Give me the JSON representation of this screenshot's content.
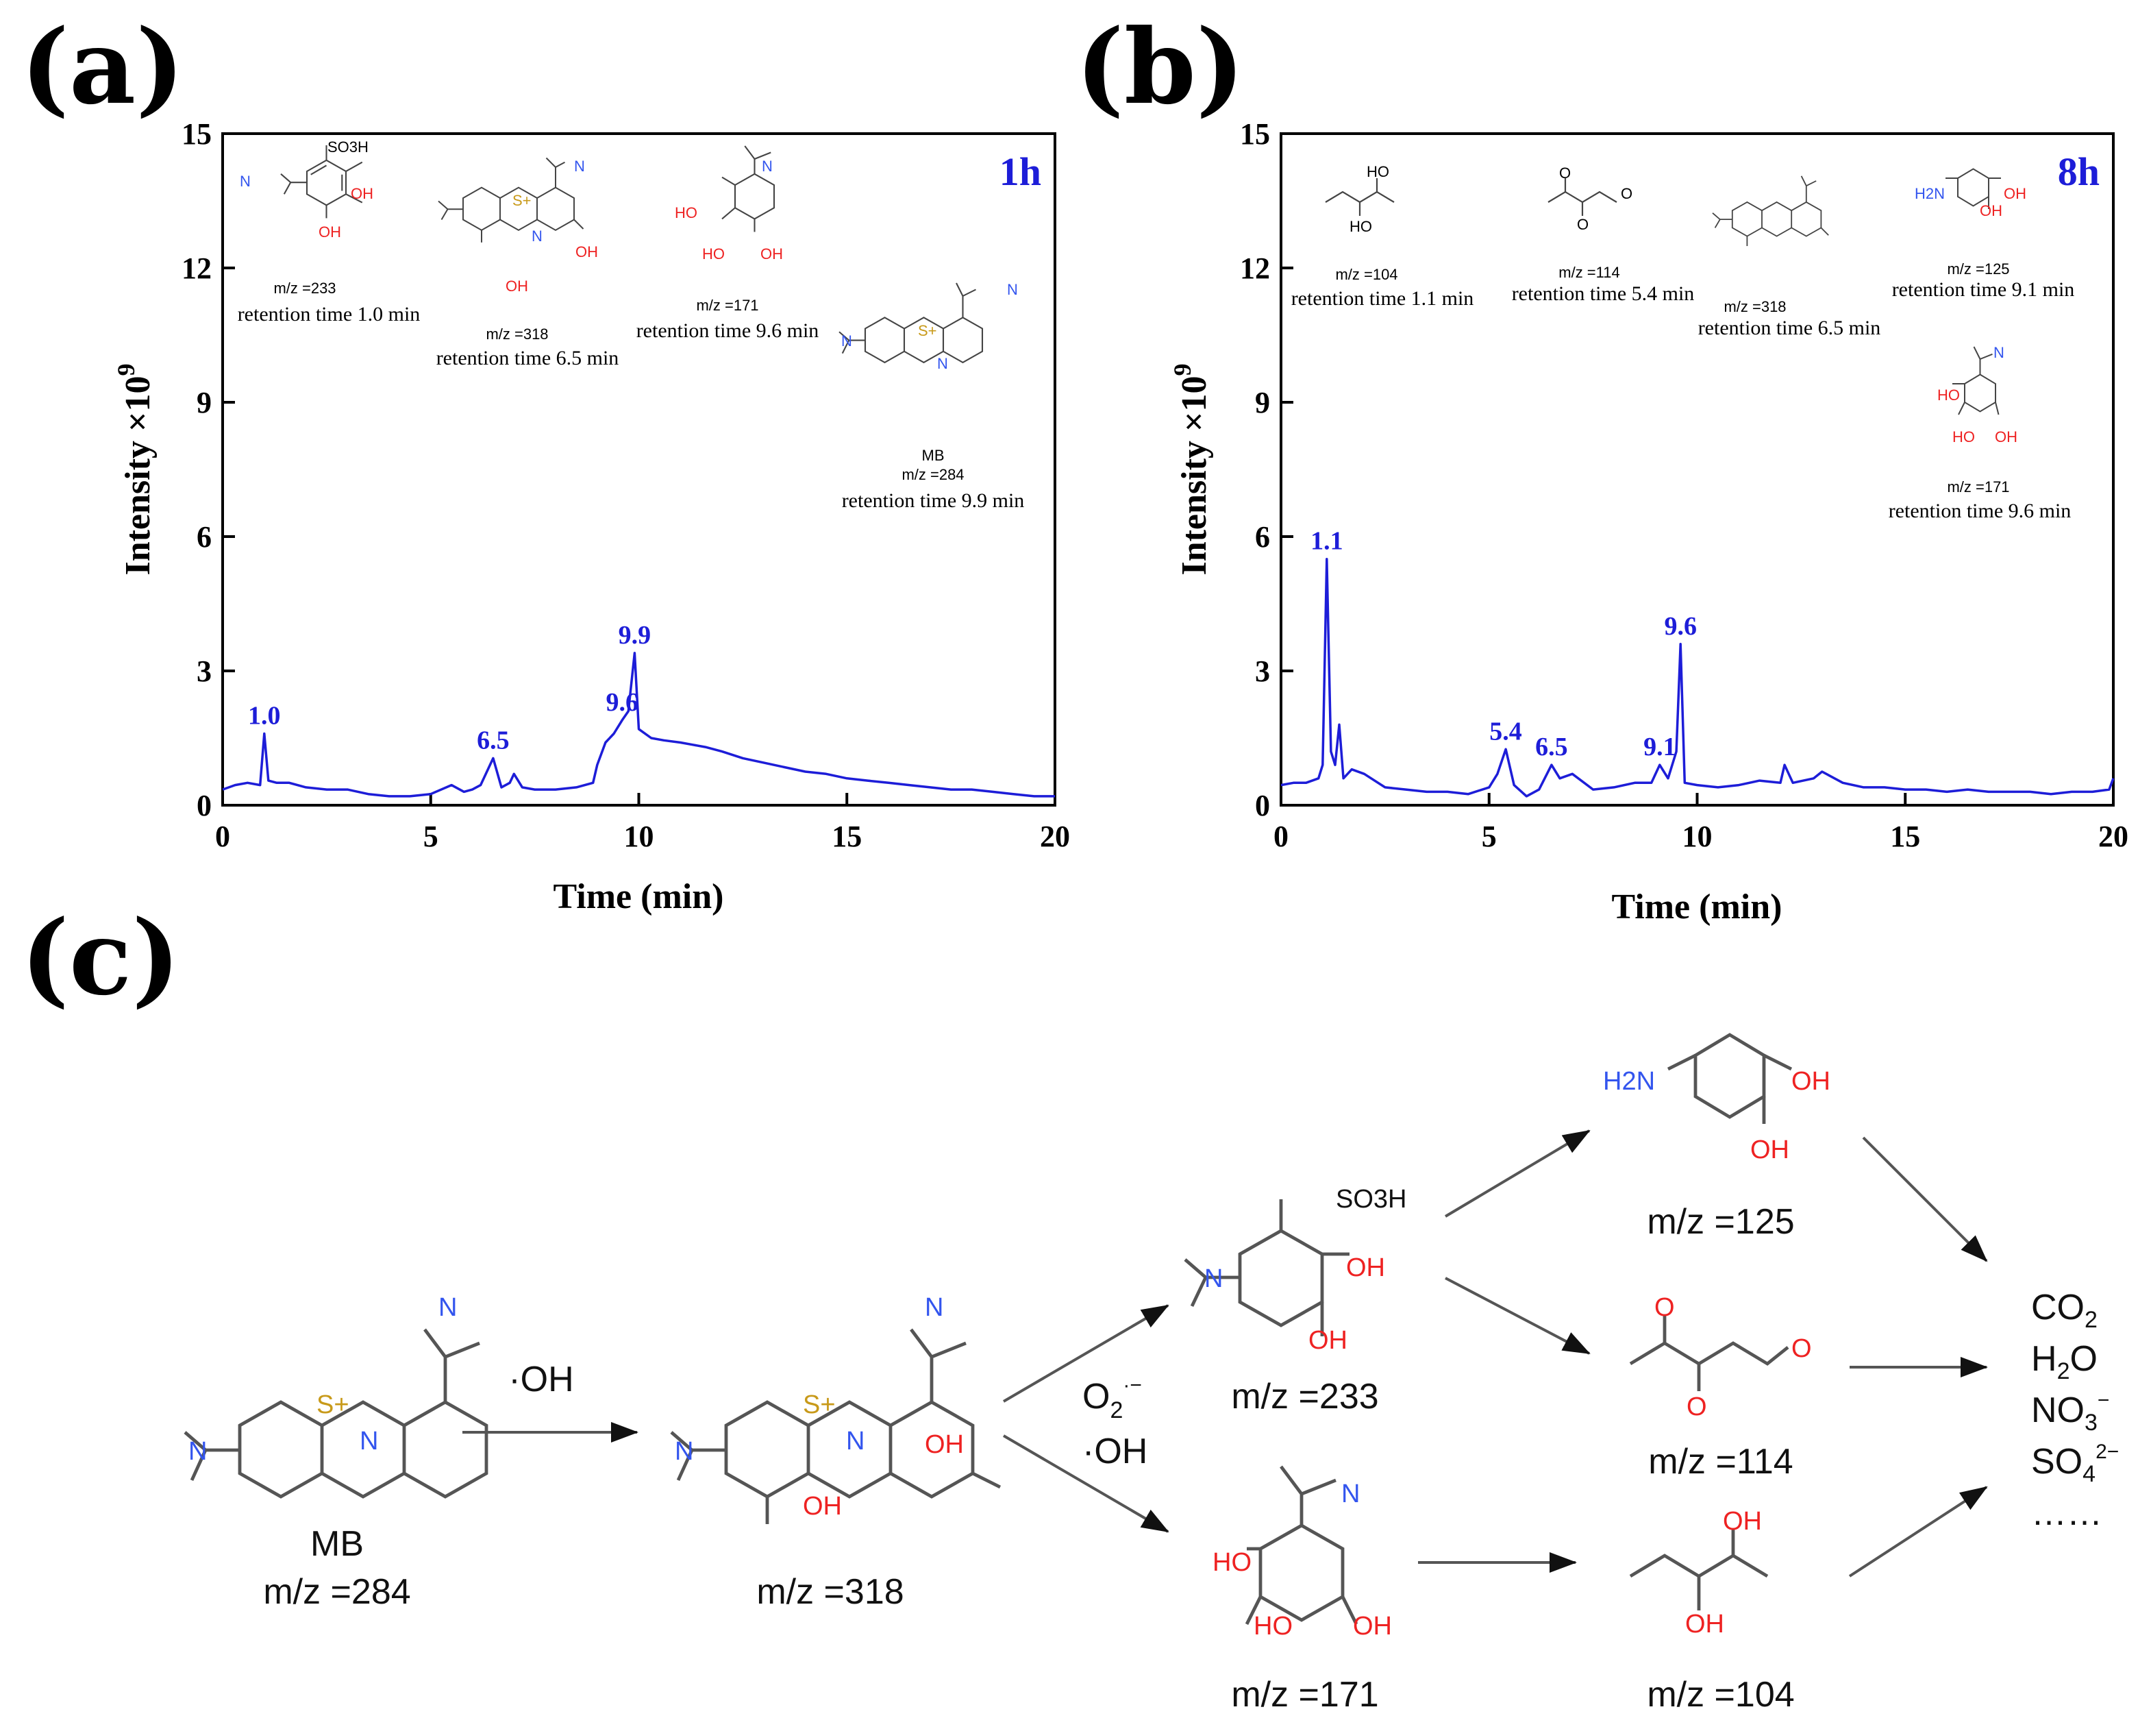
{
  "panels": {
    "a": "(a)",
    "b": "(b)",
    "c": "(c)"
  },
  "chart_data": [
    {
      "type": "line",
      "panel": "a",
      "time_label": "1h",
      "xlabel": "Time (min)",
      "ylabel_main": "Intensity ×10",
      "ylabel_exp": "9",
      "xlim": [
        0,
        20
      ],
      "ylim": [
        0,
        15
      ],
      "xticks": [
        "0",
        "5",
        "10",
        "15",
        "20"
      ],
      "yticks": [
        "0",
        "3",
        "6",
        "9",
        "12",
        "15"
      ],
      "series": [
        {
          "name": "1h",
          "x": [
            0,
            0.3,
            0.6,
            0.9,
            1.0,
            1.1,
            1.3,
            1.6,
            2.0,
            2.5,
            3.0,
            3.5,
            4.0,
            4.5,
            5.0,
            5.5,
            5.8,
            6.0,
            6.2,
            6.5,
            6.7,
            6.9,
            7.0,
            7.2,
            7.5,
            8.0,
            8.5,
            8.9,
            9.0,
            9.2,
            9.4,
            9.6,
            9.75,
            9.9,
            10.0,
            10.3,
            10.6,
            11.0,
            11.3,
            11.6,
            12.0,
            12.5,
            13.0,
            13.5,
            14.0,
            14.5,
            15.0,
            15.5,
            16.0,
            16.5,
            17.0,
            17.5,
            18.0,
            18.5,
            19.0,
            19.5,
            20.0
          ],
          "y": [
            0.35,
            0.45,
            0.5,
            0.45,
            1.6,
            0.55,
            0.5,
            0.5,
            0.4,
            0.35,
            0.35,
            0.25,
            0.2,
            0.2,
            0.25,
            0.45,
            0.3,
            0.35,
            0.45,
            1.05,
            0.4,
            0.5,
            0.7,
            0.4,
            0.35,
            0.35,
            0.4,
            0.5,
            0.9,
            1.4,
            1.6,
            1.9,
            2.1,
            3.4,
            1.7,
            1.5,
            1.45,
            1.4,
            1.35,
            1.3,
            1.2,
            1.05,
            0.95,
            0.85,
            0.75,
            0.7,
            0.6,
            0.55,
            0.5,
            0.45,
            0.4,
            0.35,
            0.35,
            0.3,
            0.25,
            0.2,
            0.2
          ]
        }
      ],
      "peak_labels": [
        {
          "text": "1.0",
          "x": 1.0,
          "y": 1.6
        },
        {
          "text": "6.5",
          "x": 6.5,
          "y": 1.05
        },
        {
          "text": "9.6",
          "x": 9.6,
          "y": 1.9
        },
        {
          "text": "9.9",
          "x": 9.9,
          "y": 3.4
        }
      ],
      "annotations": [
        {
          "mz": "m/z =233",
          "rt": "retention time 1.0 min"
        },
        {
          "mz": "m/z =318",
          "rt": "retention time 6.5 min"
        },
        {
          "mz": "m/z =171",
          "rt": "retention time 9.6 min"
        },
        {
          "name": "MB",
          "mz": "m/z =284",
          "rt": "retention time 9.9 min"
        }
      ]
    },
    {
      "type": "line",
      "panel": "b",
      "time_label": "8h",
      "xlabel": "Time (min)",
      "ylabel_main": "Intensity ×10",
      "ylabel_exp": "9",
      "xlim": [
        0,
        20
      ],
      "ylim": [
        0,
        15
      ],
      "xticks": [
        "0",
        "5",
        "10",
        "15",
        "20"
      ],
      "yticks": [
        "0",
        "3",
        "6",
        "9",
        "12",
        "15"
      ],
      "series": [
        {
          "name": "8h",
          "x": [
            0,
            0.3,
            0.6,
            0.9,
            1.0,
            1.1,
            1.2,
            1.3,
            1.4,
            1.5,
            1.7,
            2.0,
            2.5,
            3.0,
            3.5,
            4.0,
            4.5,
            5.0,
            5.2,
            5.4,
            5.6,
            5.9,
            6.2,
            6.5,
            6.7,
            7.0,
            7.5,
            8.0,
            8.5,
            8.9,
            9.1,
            9.3,
            9.5,
            9.6,
            9.7,
            10.0,
            10.5,
            11.0,
            11.5,
            12.0,
            12.1,
            12.3,
            12.8,
            13.0,
            13.5,
            14.0,
            14.5,
            15.0,
            15.5,
            16.0,
            16.5,
            17.0,
            17.5,
            18.0,
            18.5,
            19.0,
            19.5,
            19.9,
            20.0
          ],
          "y": [
            0.45,
            0.5,
            0.5,
            0.6,
            0.9,
            5.5,
            1.2,
            0.9,
            1.8,
            0.6,
            0.8,
            0.7,
            0.4,
            0.35,
            0.3,
            0.3,
            0.25,
            0.4,
            0.7,
            1.25,
            0.45,
            0.2,
            0.35,
            0.9,
            0.6,
            0.7,
            0.35,
            0.4,
            0.5,
            0.5,
            0.9,
            0.6,
            1.2,
            3.6,
            0.5,
            0.45,
            0.4,
            0.45,
            0.55,
            0.5,
            0.9,
            0.5,
            0.6,
            0.75,
            0.5,
            0.4,
            0.4,
            0.35,
            0.35,
            0.3,
            0.35,
            0.3,
            0.3,
            0.3,
            0.25,
            0.3,
            0.3,
            0.35,
            0.6
          ]
        }
      ],
      "peak_labels": [
        {
          "text": "1.1",
          "x": 1.1,
          "y": 5.5
        },
        {
          "text": "5.4",
          "x": 5.4,
          "y": 1.25
        },
        {
          "text": "6.5",
          "x": 6.5,
          "y": 0.9
        },
        {
          "text": "9.1",
          "x": 9.1,
          "y": 0.9
        },
        {
          "text": "9.6",
          "x": 9.6,
          "y": 3.6
        }
      ],
      "annotations": [
        {
          "mz": "m/z =104",
          "rt": "retention time 1.1 min"
        },
        {
          "mz": "m/z =114",
          "rt": "retention time 5.4 min"
        },
        {
          "mz": "m/z =318",
          "rt": "retention time 6.5 min"
        },
        {
          "mz": "m/z =125",
          "rt": "retention time 9.1 min"
        },
        {
          "mz": "m/z =171",
          "rt": "retention time 9.6 min"
        }
      ]
    }
  ],
  "pathway": {
    "mb_name": "MB",
    "mz_284": "m/z =284",
    "mz_318": "m/z =318",
    "mz_233": "m/z =233",
    "mz_171": "m/z =171",
    "mz_125": "m/z =125",
    "mz_114": "m/z =114",
    "mz_104": "m/z =104",
    "step1_reagent": "·OH",
    "step2_reagent_a": "O",
    "step2_reagent_a_sub": "2",
    "step2_reagent_a_sup": "·−",
    "step2_reagent_b": "·OH",
    "products": {
      "co2": "CO",
      "co2_sub": "2",
      "h2o": "H",
      "h2o_sub": "2",
      "h2o_tail": "O",
      "no3": "NO",
      "no3_sub": "3",
      "no3_sup": "−",
      "so4": "SO",
      "so4_sub": "4",
      "so4_sup": "2−",
      "etc": "……"
    }
  },
  "atoms": {
    "so3h": "SO3H",
    "oh": "OH",
    "ho": "HO",
    "n": "N",
    "s_plus": "S+",
    "h2n": "H2N",
    "o": "O"
  },
  "colors": {
    "trace": "#1d1dd8",
    "n_blue": "#3355ee",
    "o_red": "#ee2222",
    "s_gold": "#c89a1a",
    "bond": "#555555",
    "arrow": "#666666"
  }
}
